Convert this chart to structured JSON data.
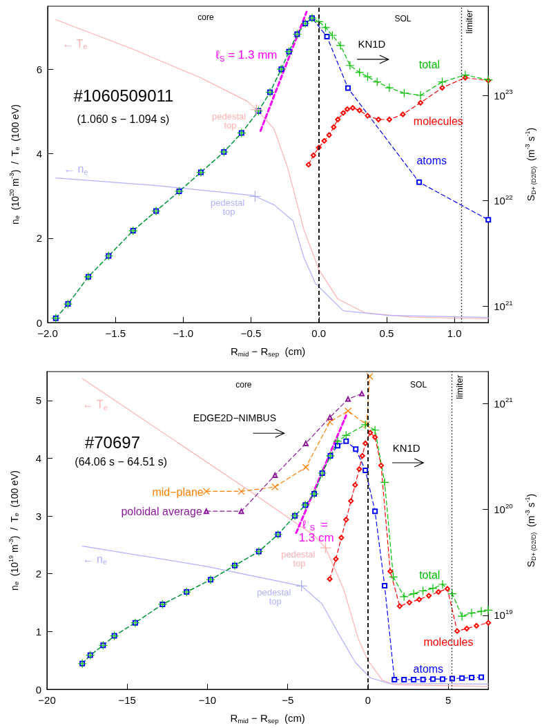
{
  "chart_data": [
    {
      "type": "line",
      "xlabel": "R$_{mid}$ − R$_{sep}$  (cm)",
      "ylabel": "n$_{e}$  (10$^{20}$ m$^{-3}$)  /  T$_{e}$  (100 eV)",
      "y2label": "S$_{D+ (D2/D)}$  (m$^{-3}$ s$^{-1}$)",
      "xlim": [
        -2,
        1.25
      ],
      "xticks": [
        {
          "value": -2,
          "label": "−2.0"
        },
        {
          "value": -1.5,
          "label": "−1.5"
        },
        {
          "value": -1,
          "label": "−1.0"
        },
        {
          "value": -0.5,
          "label": "−0.5"
        },
        {
          "value": 0,
          "label": "0.0"
        },
        {
          "value": 0.5,
          "label": "0.5"
        },
        {
          "value": 1,
          "label": "1.0"
        }
      ],
      "ylim": [
        0,
        7.5
      ],
      "yticks": [
        0,
        2,
        4,
        6
      ],
      "y2lim": [
        7e+20,
        7e+23
      ],
      "y2ticks": [
        {
          "value": 1e+21,
          "label": "10$^{21}$"
        },
        {
          "value": 1e+22,
          "label": "10$^{22}$"
        },
        {
          "value": 1e+23,
          "label": "10$^{23}$"
        }
      ],
      "log": "y2",
      "series": [
        {
          "name": "← T$_{e}$",
          "color": "#ffb0b0",
          "marker": "none",
          "line_style": "solid",
          "x": [
            -1.94,
            -1.37,
            -0.87,
            -0.53,
            -0.46,
            -0.33,
            -0.23,
            -0.11,
            0,
            0.14,
            0.34,
            0.68,
            1.25
          ],
          "values": [
            7.18,
            6.48,
            5.8,
            5.25,
            5.05,
            4.59,
            3.67,
            2.2,
            1.26,
            0.56,
            0.23,
            0.13,
            0.09
          ]
        },
        {
          "name": "← n$_{e}$",
          "color": "#b0b0ff",
          "marker": "none",
          "line_style": "solid",
          "x": [
            -1.94,
            -1.2,
            -0.48,
            -0.33,
            -0.19,
            -0.11,
            -0.025,
            0.18,
            0.51,
            1.25
          ],
          "values": [
            3.43,
            3.25,
            3.01,
            2.79,
            2.41,
            1.54,
            0.93,
            0.28,
            0.17,
            0.12
          ]
        },
        {
          "name": "atoms",
          "color": "#0000ff",
          "axis": "y2",
          "marker": "square",
          "line_style": "dashed",
          "x": [
            -1.94,
            -1.85,
            -1.7,
            -1.55,
            -1.37,
            -1.2,
            -1.03,
            -0.87,
            -0.7,
            -0.57,
            -0.445,
            -0.36,
            -0.277,
            -0.22,
            -0.16,
            -0.1,
            -0.05,
            0.06,
            0.215,
            0.74,
            1.25
          ],
          "values": [
            7.7e+20,
            1.05e+21,
            1.9e+21,
            3e+21,
            5.2e+21,
            8e+21,
            1.23e+22,
            1.86e+22,
            2.9e+22,
            4.4e+22,
            7.1e+22,
            1.07e+23,
            1.77e+23,
            2.6e+23,
            3.8e+23,
            4.8e+23,
            5.4e+23,
            3.6e+23,
            1.17e+23,
            1.5e+22,
            6.6e+21
          ]
        },
        {
          "name": "molecules",
          "color": "#ff0000",
          "axis": "y2",
          "marker": "diamond",
          "line_style": "dashed",
          "x": [
            -0.076,
            -0.04,
            0,
            0.04,
            0.076,
            0.11,
            0.14,
            0.18,
            0.21,
            0.25,
            0.3,
            0.36,
            0.44,
            0.52,
            0.62,
            0.75,
            0.91,
            1.08,
            1.25
          ],
          "values": [
            2.2e+22,
            2.7e+22,
            3.2e+22,
            3.7e+22,
            4.2e+22,
            5e+22,
            5.9e+22,
            6.8e+22,
            7.4e+22,
            7.6e+22,
            7.2e+22,
            6.4e+22,
            5.9e+22,
            5.9e+22,
            6.6e+22,
            8.5e+22,
            1.18e+23,
            1.47e+23,
            1.38e+23
          ]
        },
        {
          "name": "total",
          "color": "#00c000",
          "axis": "y2",
          "marker": "plus",
          "line_style": "dashed",
          "x": [
            -1.94,
            -1.85,
            -1.7,
            -1.55,
            -1.37,
            -1.2,
            -1.03,
            -0.87,
            -0.7,
            -0.57,
            -0.445,
            -0.36,
            -0.277,
            -0.22,
            -0.16,
            -0.1,
            -0.05,
            0,
            0.05,
            0.1,
            0.16,
            0.23,
            0.3,
            0.36,
            0.43,
            0.52,
            0.63,
            0.75,
            0.91,
            1.08,
            1.25
          ],
          "values": [
            7.7e+20,
            1.05e+21,
            1.9e+21,
            3e+21,
            5.2e+21,
            8e+21,
            1.23e+22,
            1.86e+22,
            2.9e+22,
            4.4e+22,
            7.1e+22,
            1.07e+23,
            1.77e+23,
            2.6e+23,
            3.8e+23,
            4.8e+23,
            5.4e+23,
            5e+23,
            4.4e+23,
            3.7e+23,
            2.97e+23,
            1.92e+23,
            1.65e+23,
            1.5e+23,
            1.34e+23,
            1.18e+23,
            1.05e+23,
            1e+23,
            1.34e+23,
            1.56e+23,
            1.4e+23
          ]
        },
        {
          "name": "ℓ$_{S}$ = 1.3 mm",
          "color": "#ff00ff",
          "axis": "y2",
          "marker": "none",
          "line_style": "dashed",
          "x": [
            -0.43,
            -0.09
          ],
          "values": [
            4.6e+22,
            6.2e+23
          ]
        }
      ],
      "ref_lines": [
        {
          "axis": "x",
          "value": 0,
          "line_style": "dashed"
        },
        {
          "axis": "x",
          "value": 1.05,
          "label": "limiter",
          "line_style": "dotted"
        }
      ],
      "annotations": [
        "core",
        "SOL",
        "KN1D",
        "#1060509011",
        "(1.060 s − 1.094 s)",
        {
          "text": "pedestal top",
          "x": -0.46,
          "y": 5.05
        },
        {
          "text": "pedestal top",
          "x": -0.47,
          "y": 2.99
        }
      ]
    },
    {
      "type": "line",
      "xlabel": "R$_{mid}$ − R$_{sep}$  (cm)",
      "ylabel": "n$_{e}$  (10$^{19}$ m$^{-3}$)  /  T$_{e}$  (100 eV)",
      "y2label": "S$_{D+ (D2/D)}$  (m$^{-3}$ s$^{-1}$)",
      "xlim": [
        -20,
        7.5
      ],
      "xticks": [
        {
          "value": -20,
          "label": "−20"
        },
        {
          "value": -15,
          "label": "−15"
        },
        {
          "value": -10,
          "label": "−10"
        },
        {
          "value": -5,
          "label": "−5"
        },
        0,
        5
      ],
      "ylim": [
        0,
        5.5
      ],
      "yticks": [
        0,
        1,
        2,
        3,
        4,
        5
      ],
      "y2lim": [
        2e+18,
        2e+21
      ],
      "y2ticks": [
        {
          "value": 1e+19,
          "label": "10$^{19}$"
        },
        {
          "value": 1e+20,
          "label": "10$^{20}$"
        },
        {
          "value": 1e+21,
          "label": "10$^{21}$"
        }
      ],
      "log": "y2",
      "series": [
        {
          "name": "← T$_{e}$",
          "color": "#ffb0b0",
          "marker": "none",
          "line_style": "solid",
          "x": [
            -17.8,
            -7.56,
            -3.35,
            -2.64,
            -1.51,
            -0.61,
            0,
            0.89,
            1.65,
            7.5
          ],
          "values": [
            5.38,
            3.47,
            2.66,
            2.45,
            1.73,
            0.88,
            0.5,
            0.16,
            0.08,
            0.05
          ]
        },
        {
          "name": "← n$_{e}$",
          "color": "#b0b0ff",
          "marker": "none",
          "line_style": "solid",
          "x": [
            -17.8,
            -10.1,
            -4.14,
            -2.86,
            -1.66,
            -0.77,
            0.14,
            1.34,
            7.5
          ],
          "values": [
            2.48,
            2.13,
            1.79,
            1.48,
            0.88,
            0.46,
            0.2,
            0.1,
            0.09
          ]
        },
        {
          "name": "mid−plane",
          "color": "#ff7f00",
          "axis": "y2",
          "marker": "cross",
          "line_style": "dashed",
          "x": [
            -10.07,
            -7.89,
            -5.79,
            -3.87,
            -2.37,
            -1.24,
            -0.08,
            0.11
          ],
          "values": [
            1.48e+20,
            1.48e+20,
            1.63e+20,
            2.5e+20,
            6.7e+20,
            8.5e+20,
            6.3e+20,
            1.8e+21
          ]
        },
        {
          "name": "poloidal average",
          "color": "#8b1a9b",
          "axis": "y2",
          "marker": "triangle",
          "line_style": "dashed",
          "x": [
            -10.07,
            -7.89,
            -5.79,
            -3.87,
            -2.37,
            -1.24,
            -0.38
          ],
          "values": [
            9.6e+19,
            9.6e+19,
            2.1e+20,
            4.2e+20,
            7.4e+20,
            1.1e+21,
            1.24e+21
          ]
        },
        {
          "name": "atoms",
          "color": "#0000ff",
          "axis": "y2",
          "marker": "square",
          "line_style": "dashed",
          "x": [
            -17.8,
            -17.3,
            -16.5,
            -15.8,
            -14.5,
            -12.8,
            -11.3,
            -9.8,
            -8.3,
            -6.8,
            -5.6,
            -4.55,
            -3.9,
            -3.35,
            -2.85,
            -2.34,
            -1.89,
            -1.36,
            -0.76,
            -0.16,
            0.44,
            1.04,
            1.65,
            2.25,
            2.85,
            3.43,
            4.05,
            4.65,
            5.25,
            5.86,
            6.46,
            7.06
          ],
          "values": [
            3.5e+18,
            4.2e+18,
            5.2e+18,
            6.4e+18,
            8.5e+18,
            1.27e+19,
            1.66e+19,
            2.17e+19,
            2.95e+19,
            4e+19,
            5.8e+19,
            8.7e+19,
            1.1e+20,
            1.4e+20,
            2.2e+20,
            3.2e+20,
            4e+20,
            4.4e+20,
            3.7e+20,
            2.34e+20,
            9.6e+19,
            1.9e+19,
            2.47e+18,
            2.47e+18,
            2.47e+18,
            2.48e+18,
            2.5e+18,
            2.5e+18,
            2.52e+18,
            2.55e+18,
            2.58e+18,
            2.6e+18
          ]
        },
        {
          "name": "molecules",
          "color": "#ff0000",
          "axis": "y2",
          "marker": "diamond",
          "line_style": "dashed",
          "x": [
            -2.38,
            -2.0,
            -1.66,
            -1.36,
            -1.06,
            -0.8,
            -0.54,
            -0.35,
            -0.16,
            0.14,
            0.44,
            0.82,
            1.39,
            1.98,
            2.58,
            3.19,
            3.79,
            4.39,
            4.95,
            5.56,
            6.16,
            6.76,
            7.5
          ],
          "values": [
            2.2e+19,
            3.4e+19,
            5.4e+19,
            8e+19,
            1.2e+20,
            1.7e+20,
            2.4e+20,
            3.2e+20,
            4.2e+20,
            5.3e+20,
            4.8e+20,
            2.6e+20,
            2.6e+19,
            1.22e+19,
            1.32e+19,
            1.41e+19,
            1.53e+19,
            1.66e+19,
            1.78e+19,
            7.1e+18,
            7.5e+18,
            7.96e+18,
            8.5e+18
          ]
        },
        {
          "name": "total",
          "color": "#00c000",
          "axis": "y2",
          "marker": "plus",
          "line_style": "dashed",
          "x": [
            -17.8,
            -17.3,
            -16.5,
            -15.8,
            -14.5,
            -12.8,
            -11.3,
            -9.8,
            -8.3,
            -6.8,
            -5.6,
            -4.55,
            -3.9,
            -3.35,
            -2.85,
            -2.34,
            -1.89,
            -1.36,
            -0.16,
            0.44,
            1.04,
            1.58,
            2.25,
            2.85,
            3.43,
            4.05,
            4.65,
            5.25,
            5.86,
            6.46,
            7.06,
            7.5
          ],
          "values": [
            3.5e+18,
            4.2e+18,
            5.2e+18,
            6.4e+18,
            8.5e+18,
            1.27e+19,
            1.66e+19,
            2.17e+19,
            2.95e+19,
            4e+19,
            5.8e+19,
            8.7e+19,
            1.1e+20,
            1.4e+20,
            2.2e+20,
            3.2e+20,
            4.4e+20,
            5e+20,
            6.3e+20,
            5.6e+20,
            1.8e+20,
            2.3e+19,
            1.5e+19,
            1.6e+19,
            1.7e+19,
            1.8e+19,
            1.96e+19,
            1.6e+19,
            9.8e+18,
            1.05e+19,
            1.09e+19,
            1.12e+19
          ]
        },
        {
          "name": "ℓ$_{S}$ = 1.3 cm",
          "color": "#ff00ff",
          "axis": "y2",
          "marker": "none",
          "line_style": "dashed",
          "x": [
            -4.47,
            -1.36
          ],
          "values": [
            6e+19,
            7.7e+20
          ]
        }
      ],
      "ref_lines": [
        {
          "axis": "x",
          "value": 0,
          "line_style": "dashed"
        },
        {
          "axis": "x",
          "value": 5.2,
          "label": "limiter",
          "line_style": "dotted"
        }
      ],
      "annotations": [
        "core",
        "SOL",
        "EDGE2D−NIMBUS",
        "KN1D",
        "#70697",
        "(64.06 s − 64.51 s)",
        {
          "text": "pedestal top",
          "x": -2.64,
          "y": 2.45
        },
        {
          "text": "pedestal top",
          "x": -4.14,
          "y": 1.79
        }
      ]
    }
  ]
}
